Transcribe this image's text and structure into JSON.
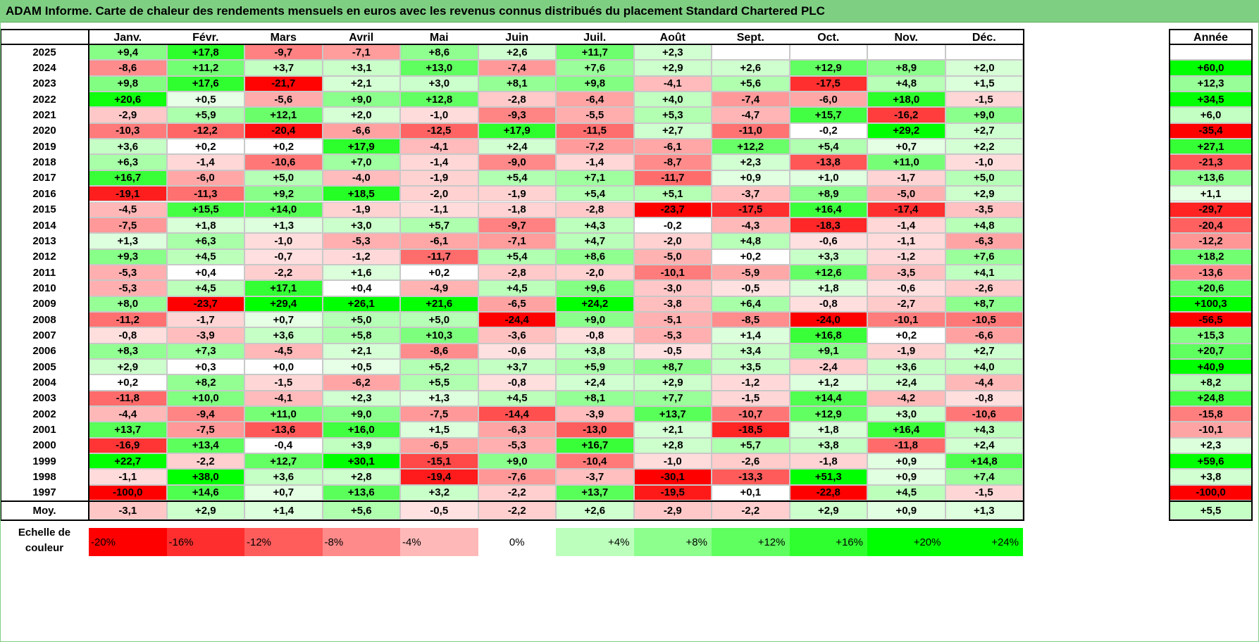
{
  "title": "ADAM Informe. Carte de chaleur des rendements mensuels en euros avec les revenus connus distribués du placement Standard Chartered PLC",
  "months": [
    "Janv.",
    "Févr.",
    "Mars",
    "Avril",
    "Mai",
    "Juin",
    "Juil.",
    "Août",
    "Sept.",
    "Oct.",
    "Nov.",
    "Déc."
  ],
  "year_col_label": "Année",
  "moy_label": "Moy.",
  "scale_label": "Echelle de couleur",
  "colors": {
    "title_bg": "#7fcf83",
    "negative": "#ff0000",
    "neutral": "#ffffff",
    "positive": "#00ff00"
  },
  "chart_data": {
    "type": "heatmap",
    "title": "ADAM Informe. Carte de chaleur des rendements mensuels en euros avec les revenus connus distribués du placement Standard Chartered PLC",
    "x": [
      "Janv.",
      "Févr.",
      "Mars",
      "Avril",
      "Mai",
      "Juin",
      "Juil.",
      "Août",
      "Sept.",
      "Oct.",
      "Nov.",
      "Déc."
    ],
    "rows": [
      {
        "year": "2025",
        "values": [
          "+9,4",
          "+17,8",
          "-9,7",
          "-7,1",
          "+8,6",
          "+2,6",
          "+11,7",
          "+2,3",
          "",
          "",
          "",
          ""
        ],
        "annual": ""
      },
      {
        "year": "2024",
        "values": [
          "-8,6",
          "+11,2",
          "+3,7",
          "+3,1",
          "+13,0",
          "-7,4",
          "+7,6",
          "+2,9",
          "+2,6",
          "+12,9",
          "+8,9",
          "+2,0"
        ],
        "annual": "+60,0"
      },
      {
        "year": "2023",
        "values": [
          "+9,8",
          "+17,6",
          "-21,7",
          "+2,1",
          "+3,0",
          "+8,1",
          "+9,8",
          "-4,1",
          "+5,6",
          "-17,5",
          "+4,8",
          "+1,5"
        ],
        "annual": "+12,3"
      },
      {
        "year": "2022",
        "values": [
          "+20,6",
          "+0,5",
          "-5,6",
          "+9,0",
          "+12,8",
          "-2,8",
          "-6,4",
          "+4,0",
          "-7,4",
          "-6,0",
          "+18,0",
          "-1,5"
        ],
        "annual": "+34,5"
      },
      {
        "year": "2021",
        "values": [
          "-2,9",
          "+5,9",
          "+12,1",
          "+2,0",
          "-1,0",
          "-9,3",
          "-5,5",
          "+5,3",
          "-4,7",
          "+15,7",
          "-16,2",
          "+9,0"
        ],
        "annual": "+6,0"
      },
      {
        "year": "2020",
        "values": [
          "-10,3",
          "-12,2",
          "-20,4",
          "-6,6",
          "-12,5",
          "+17,9",
          "-11,5",
          "+2,7",
          "-11,0",
          "-0,2",
          "+29,2",
          "+2,7"
        ],
        "annual": "-35,4"
      },
      {
        "year": "2019",
        "values": [
          "+3,6",
          "+0,2",
          "+0,2",
          "+17,9",
          "-4,1",
          "+2,4",
          "-7,2",
          "-6,1",
          "+12,2",
          "+5,4",
          "+0,7",
          "+2,2"
        ],
        "annual": "+27,1"
      },
      {
        "year": "2018",
        "values": [
          "+6,3",
          "-1,4",
          "-10,6",
          "+7,0",
          "-1,4",
          "-9,0",
          "-1,4",
          "-8,7",
          "+2,3",
          "-13,8",
          "+11,0",
          "-1,0"
        ],
        "annual": "-21,3"
      },
      {
        "year": "2017",
        "values": [
          "+16,7",
          "-6,0",
          "+5,0",
          "-4,0",
          "-1,9",
          "+5,4",
          "+7,1",
          "-11,7",
          "+0,9",
          "+1,0",
          "-1,7",
          "+5,0"
        ],
        "annual": "+13,6"
      },
      {
        "year": "2016",
        "values": [
          "-19,1",
          "-11,3",
          "+9,2",
          "+18,5",
          "-2,0",
          "-1,9",
          "+5,4",
          "+5,1",
          "-3,7",
          "+8,9",
          "-5,0",
          "+2,9"
        ],
        "annual": "+1,1"
      },
      {
        "year": "2015",
        "values": [
          "-4,5",
          "+15,5",
          "+14,0",
          "-1,9",
          "-1,1",
          "-1,8",
          "-2,8",
          "-23,7",
          "-17,5",
          "+16,4",
          "-17,4",
          "-3,5"
        ],
        "annual": "-29,7"
      },
      {
        "year": "2014",
        "values": [
          "-7,5",
          "+1,8",
          "+1,3",
          "+3,0",
          "+5,7",
          "-9,7",
          "+4,3",
          "-0,2",
          "-4,3",
          "-18,3",
          "-1,4",
          "+4,8"
        ],
        "annual": "-20,4"
      },
      {
        "year": "2013",
        "values": [
          "+1,3",
          "+6,3",
          "-1,0",
          "-5,3",
          "-6,1",
          "-7,1",
          "+4,7",
          "-2,0",
          "+4,8",
          "-0,6",
          "-1,1",
          "-6,3"
        ],
        "annual": "-12,2"
      },
      {
        "year": "2012",
        "values": [
          "+9,3",
          "+4,5",
          "-0,7",
          "-1,2",
          "-11,7",
          "+5,4",
          "+8,6",
          "-5,0",
          "+0,2",
          "+3,3",
          "-1,2",
          "+7,6"
        ],
        "annual": "+18,2"
      },
      {
        "year": "2011",
        "values": [
          "-5,3",
          "+0,4",
          "-2,2",
          "+1,6",
          "+0,2",
          "-2,8",
          "-2,0",
          "-10,1",
          "-5,9",
          "+12,6",
          "-3,5",
          "+4,1"
        ],
        "annual": "-13,6"
      },
      {
        "year": "2010",
        "values": [
          "-5,3",
          "+4,5",
          "+17,1",
          "+0,4",
          "-4,9",
          "+4,5",
          "+9,6",
          "-3,0",
          "-0,5",
          "+1,8",
          "-0,6",
          "-2,6"
        ],
        "annual": "+20,6"
      },
      {
        "year": "2009",
        "values": [
          "+8,0",
          "-23,7",
          "+29,4",
          "+26,1",
          "+21,6",
          "-6,5",
          "+24,2",
          "-3,8",
          "+6,4",
          "-0,8",
          "-2,7",
          "+8,7"
        ],
        "annual": "+100,3"
      },
      {
        "year": "2008",
        "values": [
          "-11,2",
          "-1,7",
          "+0,7",
          "+5,0",
          "+5,0",
          "-24,4",
          "+9,0",
          "-5,1",
          "-8,5",
          "-24,0",
          "-10,1",
          "-10,5"
        ],
        "annual": "-56,5"
      },
      {
        "year": "2007",
        "values": [
          "-0,8",
          "-3,9",
          "+3,6",
          "+5,8",
          "+10,3",
          "-3,6",
          "-0,8",
          "-5,3",
          "+1,4",
          "+16,8",
          "+0,2",
          "-6,6"
        ],
        "annual": "+15,3"
      },
      {
        "year": "2006",
        "values": [
          "+8,3",
          "+7,3",
          "-4,5",
          "+2,1",
          "-8,6",
          "-0,6",
          "+3,8",
          "-0,5",
          "+3,4",
          "+9,1",
          "-1,9",
          "+2,7"
        ],
        "annual": "+20,7"
      },
      {
        "year": "2005",
        "values": [
          "+2,9",
          "+0,3",
          "+0,0",
          "+0,5",
          "+5,2",
          "+3,7",
          "+5,9",
          "+8,7",
          "+3,5",
          "-2,4",
          "+3,6",
          "+4,0"
        ],
        "annual": "+40,9"
      },
      {
        "year": "2004",
        "values": [
          "+0,2",
          "+8,2",
          "-1,5",
          "-6,2",
          "+5,5",
          "-0,8",
          "+2,4",
          "+2,9",
          "-1,2",
          "+1,2",
          "+2,4",
          "-4,4"
        ],
        "annual": "+8,2"
      },
      {
        "year": "2003",
        "values": [
          "-11,8",
          "+10,0",
          "-4,1",
          "+2,3",
          "+1,3",
          "+4,5",
          "+8,1",
          "+7,7",
          "-1,5",
          "+14,4",
          "-4,2",
          "-0,8"
        ],
        "annual": "+24,8"
      },
      {
        "year": "2002",
        "values": [
          "-4,4",
          "-9,4",
          "+11,0",
          "+9,0",
          "-7,5",
          "-14,4",
          "-3,9",
          "+13,7",
          "-10,7",
          "+12,9",
          "+3,0",
          "-10,6"
        ],
        "annual": "-15,8"
      },
      {
        "year": "2001",
        "values": [
          "+13,7",
          "-7,5",
          "-13,6",
          "+16,0",
          "+1,5",
          "-6,3",
          "-13,0",
          "+2,1",
          "-18,5",
          "+1,8",
          "+16,4",
          "+4,3"
        ],
        "annual": "-10,1"
      },
      {
        "year": "2000",
        "values": [
          "-16,9",
          "+13,4",
          "-0,4",
          "+3,9",
          "-6,5",
          "-5,3",
          "+16,7",
          "+2,8",
          "+5,7",
          "+3,8",
          "-11,8",
          "+2,4"
        ],
        "annual": "+2,3"
      },
      {
        "year": "1999",
        "values": [
          "+22,7",
          "-2,2",
          "+12,7",
          "+30,1",
          "-15,1",
          "+9,0",
          "-10,4",
          "-1,0",
          "-2,6",
          "-1,8",
          "+0,9",
          "+14,8"
        ],
        "annual": "+59,6"
      },
      {
        "year": "1998",
        "values": [
          "-1,1",
          "+38,0",
          "+3,6",
          "+2,8",
          "-19,4",
          "-7,6",
          "-3,7",
          "-30,1",
          "-13,3",
          "+51,3",
          "+0,9",
          "+7,4"
        ],
        "annual": "+3,8"
      },
      {
        "year": "1997",
        "values": [
          "-100,0",
          "+14,6",
          "+0,7",
          "+13,6",
          "+3,2",
          "-2,2",
          "+13,7",
          "-19,5",
          "+0,1",
          "-22,8",
          "+4,5",
          "-1,5"
        ],
        "annual": "-100,0"
      }
    ],
    "average": {
      "values": [
        "-3,1",
        "+2,9",
        "+1,4",
        "+5,6",
        "-0,5",
        "-2,2",
        "+2,6",
        "-2,9",
        "-2,2",
        "+2,9",
        "+0,9",
        "+1,3"
      ],
      "annual": "+5,5"
    },
    "color_scale": [
      "-20%",
      "-16%",
      "-12%",
      "-8%",
      "-4%",
      "0%",
      "+4%",
      "+8%",
      "+12%",
      "+16%",
      "+20%",
      "+24%"
    ]
  }
}
